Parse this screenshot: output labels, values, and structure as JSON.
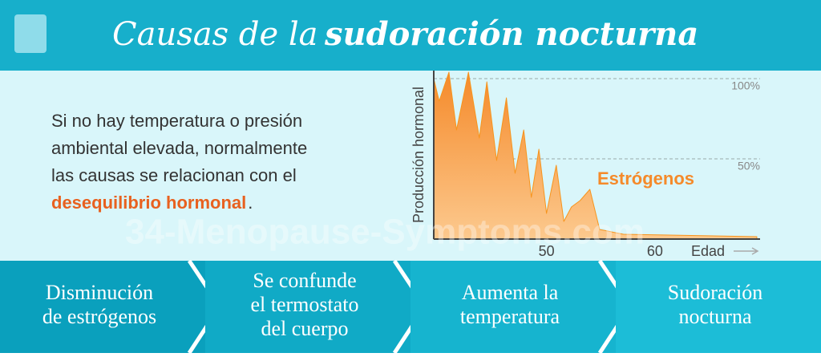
{
  "header": {
    "title_light": "Causas de la",
    "title_bold": "sudoración nocturna"
  },
  "intro": {
    "lines": [
      "Si no hay temperatura o presión",
      "ambiental elevada, normalmente",
      "las causas se relacionan con el"
    ],
    "highlight": "desequilibrio hormonal",
    "end": "."
  },
  "watermark": "34-Menopause-Symptoms.com",
  "chart_data": {
    "type": "area",
    "ylabel": "Producción hormonal",
    "xlabel": "Edad",
    "series": [
      {
        "name": "Estrógenos",
        "color": "#f7941d",
        "x": [
          39.6,
          40.1,
          41.0,
          41.7,
          42.8,
          43.8,
          44.5,
          45.4,
          46.3,
          47.1,
          47.9,
          48.6,
          49.3,
          50.0,
          50.9,
          51.6,
          52.3,
          53.1,
          54.0,
          54.9,
          57.1,
          69.4
        ],
        "values": [
          100,
          86,
          104,
          68,
          104,
          63,
          98,
          49,
          88,
          41,
          68,
          26,
          56,
          16,
          46,
          11,
          20,
          24,
          31,
          6,
          3,
          1.5
        ]
      }
    ],
    "xlim": [
      39.6,
      69.7
    ],
    "ylim": [
      0,
      105
    ],
    "xticks": [
      50,
      60
    ],
    "yticks": [
      {
        "value": 50,
        "label": "50%"
      },
      {
        "value": 100,
        "label": "100%"
      }
    ],
    "grid": true
  },
  "steps": [
    {
      "lines": [
        "Disminución",
        "de estrógenos"
      ]
    },
    {
      "lines": [
        "Se confunde",
        "el termostato",
        "del cuerpo"
      ]
    },
    {
      "lines": [
        "Aumenta la",
        "temperatura"
      ]
    },
    {
      "lines": [
        "Sudoración",
        "nocturna"
      ]
    }
  ]
}
